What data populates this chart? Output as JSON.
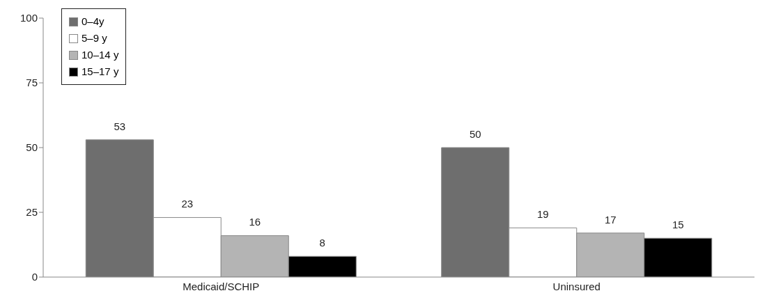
{
  "chart_data": {
    "type": "bar",
    "categories": [
      "Medicaid/SCHIP",
      "Uninsured"
    ],
    "series": [
      {
        "name": "0–4y",
        "color": "#6e6e6e",
        "values": [
          53,
          50
        ]
      },
      {
        "name": "5–9 y",
        "color": "#ffffff",
        "values": [
          23,
          19
        ]
      },
      {
        "name": "10–14 y",
        "color": "#b4b4b4",
        "values": [
          16,
          17
        ]
      },
      {
        "name": "15–17 y",
        "color": "#000000",
        "values": [
          8,
          15
        ]
      }
    ],
    "ylim": [
      0,
      100
    ],
    "yticks": [
      0,
      25,
      50,
      75,
      100
    ],
    "grid": false,
    "legend": "top left",
    "data_labels": true
  }
}
